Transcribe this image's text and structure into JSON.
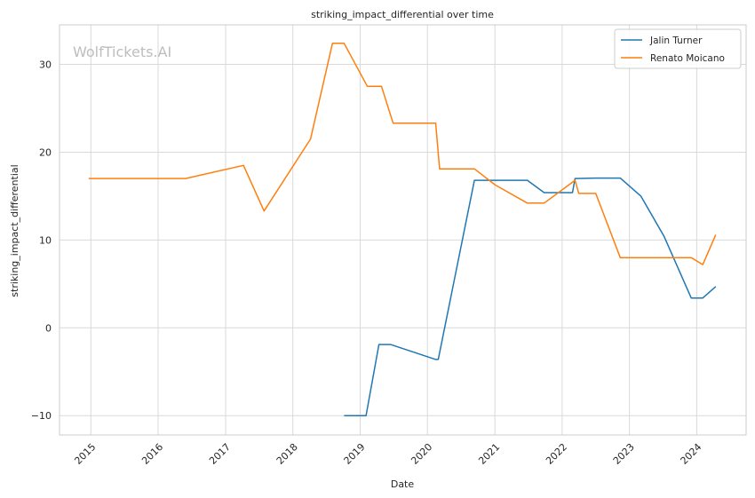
{
  "chart_data": {
    "type": "line",
    "title": "striking_impact_differential over time",
    "xlabel": "Date",
    "ylabel": "striking_impact_differential",
    "watermark": "WolfTickets.AI",
    "x_range": [
      "2014-07-15",
      "2024-09-25"
    ],
    "ylim": [
      -12.2,
      34.5
    ],
    "x_ticks": [
      "2015-01-01",
      "2016-01-01",
      "2017-01-01",
      "2018-01-01",
      "2019-01-01",
      "2020-01-01",
      "2021-01-01",
      "2022-01-01",
      "2023-01-01",
      "2024-01-01"
    ],
    "x_tick_labels": [
      "2015",
      "2016",
      "2017",
      "2018",
      "2019",
      "2020",
      "2021",
      "2022",
      "2023",
      "2024"
    ],
    "y_ticks": [
      -10,
      0,
      10,
      20,
      30
    ],
    "y_tick_labels": [
      "−10",
      "0",
      "10",
      "20",
      "30"
    ],
    "grid": true,
    "legend_position": "top-right",
    "series": [
      {
        "name": "Jalin Turner",
        "color": "#1f77b4",
        "points": [
          [
            "2018-10-06",
            -10.0
          ],
          [
            "2019-02-02",
            -10.0
          ],
          [
            "2019-04-13",
            -1.9
          ],
          [
            "2019-06-15",
            -1.9
          ],
          [
            "2020-02-15",
            -3.6
          ],
          [
            "2020-02-29",
            -3.6
          ],
          [
            "2020-09-12",
            16.8
          ],
          [
            "2021-06-26",
            16.8
          ],
          [
            "2021-09-25",
            15.4
          ],
          [
            "2022-02-26",
            15.4
          ],
          [
            "2022-03-12",
            17.0
          ],
          [
            "2022-07-02",
            17.05
          ],
          [
            "2022-11-12",
            17.05
          ],
          [
            "2023-03-04",
            15.0
          ],
          [
            "2023-07-08",
            10.4
          ],
          [
            "2023-12-02",
            3.4
          ],
          [
            "2024-02-03",
            3.4
          ],
          [
            "2024-04-13",
            4.7
          ]
        ]
      },
      {
        "name": "Renato Moicano",
        "color": "#ff7f0e",
        "points": [
          [
            "2014-12-20",
            17.0
          ],
          [
            "2016-05-29",
            17.0
          ],
          [
            "2017-04-08",
            18.5
          ],
          [
            "2017-07-29",
            13.3
          ],
          [
            "2018-04-07",
            21.5
          ],
          [
            "2018-08-04",
            32.4
          ],
          [
            "2018-10-06",
            32.4
          ],
          [
            "2019-02-09",
            27.5
          ],
          [
            "2019-04-27",
            27.5
          ],
          [
            "2019-06-29",
            23.3
          ],
          [
            "2020-02-15",
            23.3
          ],
          [
            "2020-03-07",
            18.1
          ],
          [
            "2020-09-12",
            18.1
          ],
          [
            "2021-01-01",
            16.3
          ],
          [
            "2021-06-26",
            14.2
          ],
          [
            "2021-09-25",
            14.2
          ],
          [
            "2022-03-12",
            16.8
          ],
          [
            "2022-04-01",
            15.3
          ],
          [
            "2022-07-02",
            15.3
          ],
          [
            "2022-11-12",
            8.0
          ],
          [
            "2023-12-02",
            8.0
          ],
          [
            "2024-02-03",
            7.2
          ],
          [
            "2024-04-13",
            10.6
          ]
        ]
      }
    ]
  }
}
